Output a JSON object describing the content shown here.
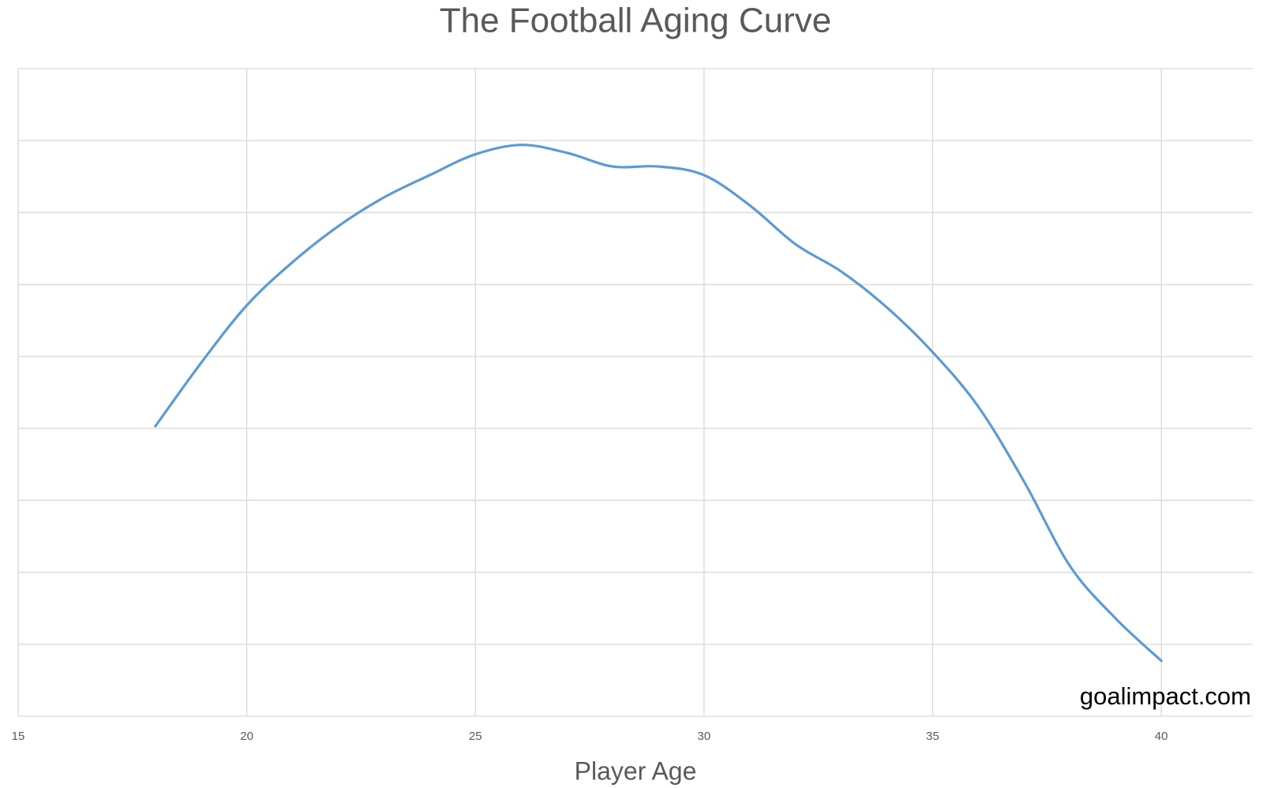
{
  "chart_data": {
    "type": "line",
    "title": "The Football Aging Curve",
    "x_label": "Player Age",
    "annotation": "goalimpact.com",
    "x": [
      18,
      19,
      20,
      21,
      22,
      23,
      24,
      25,
      26,
      27,
      28,
      29,
      30,
      31,
      32,
      33,
      34,
      35,
      36,
      37,
      38,
      39,
      40
    ],
    "series": [
      {
        "color": "#5b9bd5",
        "values": [
          4.03,
          4.91,
          5.71,
          6.31,
          6.81,
          7.21,
          7.52,
          7.81,
          7.94,
          7.83,
          7.64,
          7.64,
          7.52,
          7.1,
          6.56,
          6.18,
          5.68,
          5.06,
          4.3,
          3.26,
          2.09,
          1.36,
          0.77
        ]
      }
    ],
    "xlim": [
      15,
      42
    ],
    "xticks": [
      15,
      20,
      25,
      30,
      35,
      40
    ],
    "ylim": [
      0,
      9
    ],
    "yticks": [
      0,
      1,
      2,
      3,
      4,
      5,
      6,
      7,
      8,
      9
    ],
    "grid": true,
    "smooth": true
  }
}
